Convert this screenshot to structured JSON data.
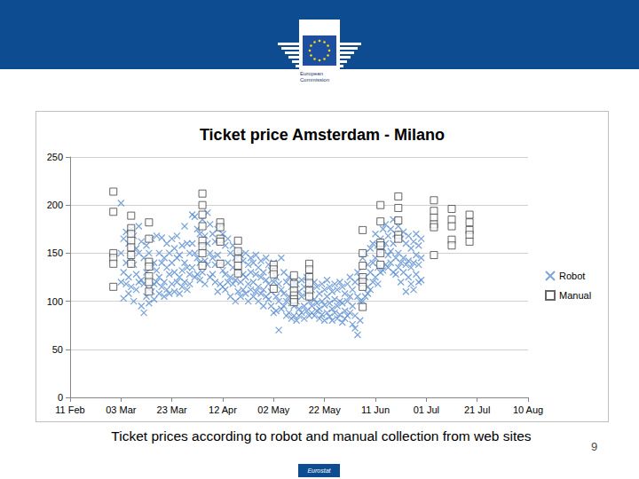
{
  "slide": {
    "logo_text": [
      "European",
      "Commission"
    ],
    "caption": "Ticket prices according to robot and manual collection from web sites",
    "page": "9",
    "footer": "Eurostat"
  },
  "chart_data": {
    "type": "scatter",
    "title": "Ticket price Amsterdam - Milano",
    "xlim": [
      42,
      222
    ],
    "xticks": [
      {
        "value": 42,
        "label": "11 Feb"
      },
      {
        "value": 62,
        "label": "03 Mar"
      },
      {
        "value": 82,
        "label": "23 Mar"
      },
      {
        "value": 102,
        "label": "12 Apr"
      },
      {
        "value": 122,
        "label": "02 May"
      },
      {
        "value": 142,
        "label": "22 May"
      },
      {
        "value": 162,
        "label": "11 Jun"
      },
      {
        "value": 182,
        "label": "01 Jul"
      },
      {
        "value": 202,
        "label": "21 Jul"
      },
      {
        "value": 222,
        "label": "10 Aug"
      }
    ],
    "ylim": [
      0,
      250
    ],
    "yticks": [
      0,
      50,
      100,
      150,
      200,
      250
    ],
    "grid": true,
    "legend": "right",
    "series": [
      {
        "name": "Robot",
        "color": "#5b8fd0",
        "marker": "x",
        "x": [
          62,
          62,
          62,
          63,
          63,
          63,
          64,
          64,
          64,
          65,
          65,
          65,
          66,
          66,
          66,
          67,
          67,
          67,
          68,
          68,
          68,
          69,
          69,
          69,
          70,
          70,
          70,
          71,
          71,
          71,
          72,
          72,
          72,
          73,
          73,
          73,
          74,
          74,
          74,
          75,
          75,
          75,
          76,
          76,
          76,
          77,
          77,
          77,
          78,
          78,
          78,
          79,
          79,
          79,
          80,
          80,
          80,
          81,
          81,
          81,
          82,
          82,
          82,
          83,
          83,
          83,
          84,
          84,
          84,
          85,
          85,
          85,
          86,
          86,
          86,
          87,
          87,
          87,
          88,
          88,
          88,
          89,
          89,
          89,
          90,
          90,
          90,
          91,
          91,
          91,
          92,
          92,
          92,
          93,
          93,
          93,
          94,
          94,
          94,
          95,
          95,
          95,
          96,
          96,
          96,
          97,
          97,
          97,
          98,
          98,
          98,
          99,
          99,
          99,
          100,
          100,
          100,
          101,
          101,
          101,
          102,
          102,
          102,
          103,
          103,
          103,
          104,
          104,
          104,
          105,
          105,
          105,
          106,
          106,
          106,
          107,
          107,
          107,
          108,
          108,
          108,
          109,
          109,
          109,
          110,
          110,
          110,
          111,
          111,
          111,
          112,
          112,
          112,
          113,
          113,
          113,
          114,
          114,
          114,
          115,
          115,
          115,
          116,
          116,
          116,
          117,
          117,
          117,
          118,
          118,
          118,
          119,
          119,
          119,
          120,
          120,
          120,
          121,
          121,
          121,
          122,
          122,
          122,
          123,
          123,
          123,
          124,
          124,
          124,
          125,
          125,
          125,
          126,
          126,
          126,
          127,
          127,
          127,
          128,
          128,
          128,
          129,
          129,
          129,
          130,
          130,
          130,
          131,
          131,
          131,
          132,
          132,
          132,
          133,
          133,
          133,
          134,
          134,
          134,
          135,
          135,
          135,
          136,
          136,
          136,
          137,
          137,
          137,
          138,
          138,
          138,
          139,
          139,
          139,
          140,
          140,
          140,
          141,
          141,
          141,
          142,
          142,
          142,
          143,
          143,
          143,
          144,
          144,
          144,
          145,
          145,
          145,
          146,
          146,
          146,
          147,
          147,
          147,
          148,
          148,
          148,
          149,
          149,
          149,
          150,
          150,
          150,
          151,
          151,
          151,
          152,
          152,
          152,
          153,
          153,
          153,
          154,
          154,
          154,
          155,
          155,
          155,
          156,
          156,
          156,
          157,
          157,
          157,
          158,
          158,
          158,
          159,
          159,
          159,
          160,
          160,
          160,
          161,
          161,
          161,
          162,
          162,
          162,
          163,
          163,
          163,
          164,
          164,
          164,
          165,
          165,
          165,
          166,
          166,
          166,
          167,
          167,
          167,
          168,
          168,
          168,
          169,
          169,
          169,
          170,
          170,
          170,
          171,
          171,
          171,
          172,
          172,
          172,
          173,
          173,
          173,
          174,
          174,
          174,
          175,
          175,
          175,
          176,
          176,
          176,
          177,
          177,
          177,
          178,
          178,
          178,
          179,
          179,
          179,
          180,
          180,
          180
        ],
        "values": [
          202,
          150,
          120,
          165,
          130,
          103,
          172,
          140,
          118,
          160,
          125,
          108,
          175,
          145,
          115,
          168,
          138,
          100,
          155,
          128,
          112,
          178,
          150,
          120,
          162,
          122,
          95,
          145,
          118,
          88,
          158,
          130,
          105,
          150,
          112,
          98,
          165,
          135,
          110,
          140,
          118,
          102,
          168,
          132,
          120,
          150,
          125,
          108,
          166,
          140,
          115,
          145,
          120,
          105,
          160,
          135,
          112,
          150,
          128,
          108,
          165,
          140,
          118,
          155,
          130,
          110,
          168,
          145,
          120,
          148,
          125,
          108,
          158,
          132,
          115,
          178,
          140,
          120,
          160,
          135,
          112,
          150,
          128,
          118,
          190,
          160,
          135,
          188,
          150,
          125,
          175,
          145,
          128,
          170,
          140,
          122,
          185,
          155,
          130,
          168,
          142,
          118,
          192,
          160,
          138,
          180,
          150,
          125,
          170,
          145,
          128,
          162,
          138,
          120,
          175,
          148,
          110,
          165,
          140,
          118,
          170,
          132,
          115,
          158,
          128,
          112,
          165,
          140,
          120,
          150,
          125,
          105,
          158,
          135,
          118,
          145,
          122,
          100,
          152,
          130,
          110,
          148,
          120,
          105,
          142,
          128,
          112,
          150,
          125,
          108,
          138,
          118,
          100,
          145,
          130,
          112,
          140,
          120,
          105,
          148,
          128,
          110,
          135,
          115,
          100,
          142,
          125,
          108,
          130,
          112,
          95,
          145,
          122,
          105,
          138,
          118,
          102,
          132,
          110,
          95,
          140,
          120,
          88,
          125,
          105,
          90,
          118,
          100,
          70,
          145,
          112,
          92,
          130,
          108,
          95,
          120,
          100,
          85,
          125,
          105,
          88,
          115,
          98,
          82,
          120,
          95,
          85,
          118,
          100,
          80,
          110,
          92,
          85,
          122,
          105,
          88,
          115,
          95,
          82,
          125,
          108,
          90,
          118,
          100,
          85,
          112,
          95,
          88,
          120,
          102,
          85,
          115,
          98,
          90,
          108,
          92,
          82,
          118,
          100,
          86,
          112,
          96,
          80,
          122,
          105,
          88,
          115,
          98,
          84,
          110,
          92,
          80,
          118,
          102,
          88,
          112,
          95,
          82,
          120,
          100,
          86,
          115,
          98,
          78,
          108,
          90,
          82,
          118,
          100,
          85,
          125,
          105,
          88,
          112,
          95,
          76,
          120,
          85,
          72,
          130,
          105,
          65,
          125,
          100,
          80,
          145,
          118,
          100,
          150,
          125,
          105,
          138,
          115,
          108,
          155,
          130,
          112,
          160,
          140,
          120,
          170,
          145,
          125,
          158,
          135,
          118,
          165,
          150,
          130,
          175,
          155,
          132,
          180,
          160,
          138,
          168,
          148,
          135,
          175,
          152,
          140,
          185,
          160,
          130,
          170,
          145,
          128,
          178,
          150,
          135,
          165,
          140,
          120,
          172,
          145,
          130,
          160,
          138,
          110,
          168,
          142,
          125,
          155,
          135,
          118,
          162,
          140,
          112,
          170,
          148,
          128,
          158,
          138,
          120,
          165,
          145,
          122
        ]
      },
      {
        "name": "Manual",
        "color": "#404040",
        "marker": "square",
        "x": [
          59,
          59,
          59,
          59,
          59,
          59,
          66,
          66,
          66,
          66,
          66,
          66,
          66,
          73,
          73,
          73,
          73,
          73,
          73,
          73,
          94,
          94,
          94,
          94,
          94,
          94,
          94,
          94,
          101,
          101,
          101,
          101,
          101,
          108,
          108,
          108,
          108,
          108,
          122,
          122,
          122,
          122,
          130,
          130,
          130,
          130,
          130,
          130,
          136,
          136,
          136,
          136,
          136,
          136,
          157,
          157,
          157,
          157,
          157,
          157,
          157,
          164,
          164,
          164,
          164,
          164,
          164,
          171,
          171,
          171,
          171,
          171,
          185,
          185,
          185,
          185,
          185,
          185,
          192,
          192,
          192,
          192,
          192,
          199,
          199,
          199,
          199,
          199
        ],
        "values": [
          214,
          193,
          150,
          145,
          139,
          115,
          189,
          176,
          170,
          163,
          156,
          148,
          139,
          182,
          165,
          141,
          136,
          126,
          120,
          110,
          212,
          200,
          190,
          178,
          163,
          157,
          150,
          137,
          182,
          177,
          165,
          162,
          139,
          163,
          152,
          144,
          137,
          129,
          138,
          133,
          128,
          113,
          127,
          118,
          111,
          106,
          102,
          99,
          139,
          133,
          125,
          119,
          111,
          105,
          174,
          150,
          137,
          125,
          120,
          115,
          94,
          200,
          183,
          161,
          158,
          150,
          138,
          209,
          197,
          184,
          169,
          165,
          205,
          194,
          187,
          180,
          177,
          148,
          196,
          185,
          178,
          164,
          158,
          190,
          182,
          174,
          169,
          162
        ]
      }
    ]
  }
}
